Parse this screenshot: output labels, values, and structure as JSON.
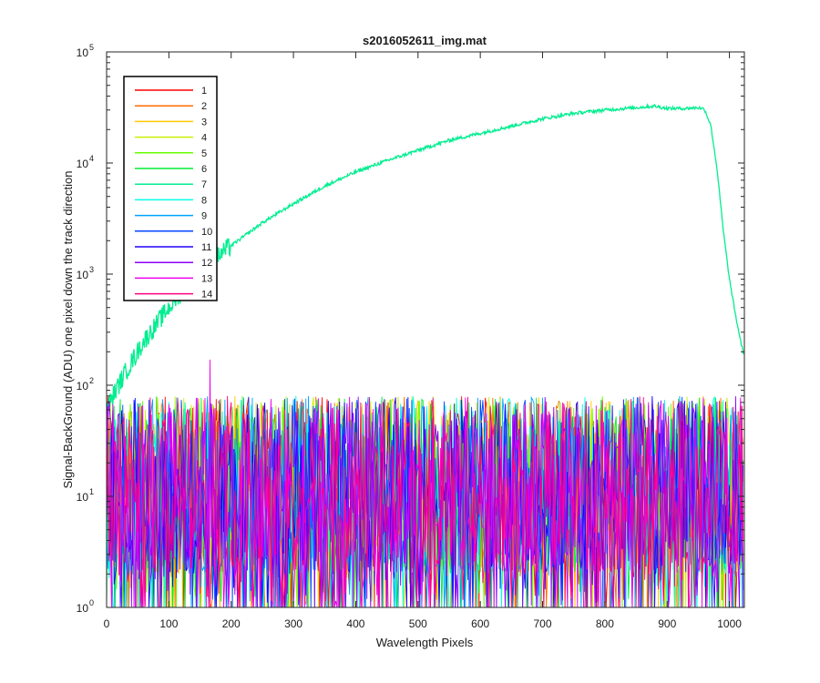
{
  "chart_data": {
    "type": "line",
    "title": "s2016052611_img.mat",
    "xlabel": "Wavelength Pixels",
    "ylabel": "Signal-BackGround (ADU) one pixel down the track direction",
    "xlim": [
      0,
      1024
    ],
    "ylim": [
      1,
      100000
    ],
    "yscale": "log",
    "grid": false,
    "legend_position": "top-left",
    "x_ticks": [
      {
        "value": 0,
        "label": "0"
      },
      {
        "value": 100,
        "label": "100"
      },
      {
        "value": 200,
        "label": "200"
      },
      {
        "value": 300,
        "label": "300"
      },
      {
        "value": 400,
        "label": "400"
      },
      {
        "value": 500,
        "label": "500"
      },
      {
        "value": 600,
        "label": "600"
      },
      {
        "value": 700,
        "label": "700"
      },
      {
        "value": 800,
        "label": "800"
      },
      {
        "value": 900,
        "label": "900"
      },
      {
        "value": 1000,
        "label": "1000"
      }
    ],
    "y_ticks": [
      {
        "value": 1,
        "base": "10",
        "exp": "0"
      },
      {
        "value": 10,
        "base": "10",
        "exp": "1"
      },
      {
        "value": 100,
        "base": "10",
        "exp": "2"
      },
      {
        "value": 1000,
        "base": "10",
        "exp": "3"
      },
      {
        "value": 10000,
        "base": "10",
        "exp": "4"
      },
      {
        "value": 100000,
        "base": "10",
        "exp": "5"
      }
    ],
    "series": [
      {
        "name": "1",
        "color": "#ff0000",
        "kind": "noise"
      },
      {
        "name": "2",
        "color": "#ff6d00",
        "kind": "noise"
      },
      {
        "name": "3",
        "color": "#ffc800",
        "kind": "noise"
      },
      {
        "name": "4",
        "color": "#c8f000",
        "kind": "noise"
      },
      {
        "name": "5",
        "color": "#66ff00",
        "kind": "noise"
      },
      {
        "name": "6",
        "color": "#00ee33",
        "kind": "noise"
      },
      {
        "name": "7",
        "color": "#00ee90",
        "kind": "signal",
        "x": [
          0,
          10,
          30,
          60,
          100,
          150,
          200,
          250,
          300,
          350,
          400,
          450,
          500,
          550,
          600,
          650,
          700,
          750,
          800,
          850,
          880,
          900,
          930,
          950,
          960,
          970,
          980,
          990,
          1000,
          1010,
          1020,
          1024
        ],
        "values": [
          60,
          80,
          130,
          250,
          500,
          1100,
          1800,
          2900,
          4300,
          6200,
          8300,
          10500,
          13000,
          16000,
          18500,
          21500,
          25000,
          28000,
          30000,
          31500,
          32500,
          31000,
          31000,
          31500,
          30500,
          22000,
          9000,
          2500,
          900,
          420,
          220,
          180
        ]
      },
      {
        "name": "8",
        "color": "#00ffe6",
        "kind": "noise"
      },
      {
        "name": "9",
        "color": "#00a2ff",
        "kind": "noise"
      },
      {
        "name": "10",
        "color": "#0045ff",
        "kind": "noise"
      },
      {
        "name": "11",
        "color": "#2200ff",
        "kind": "noise"
      },
      {
        "name": "12",
        "color": "#8c00ff",
        "kind": "noise"
      },
      {
        "name": "13",
        "color": "#ee00ee",
        "kind": "noise"
      },
      {
        "name": "14",
        "color": "#ff007f",
        "kind": "noise"
      }
    ],
    "noise_level": {
      "typical_range": [
        2,
        80
      ],
      "max": 170
    }
  }
}
